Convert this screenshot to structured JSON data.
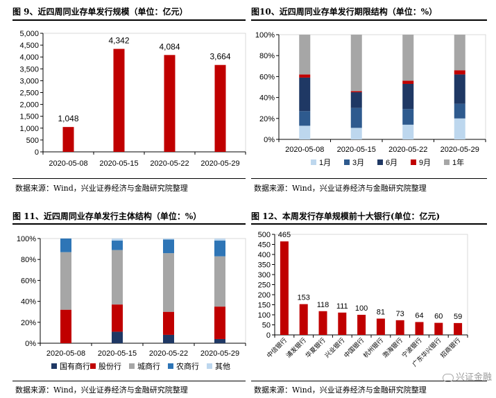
{
  "panels": {
    "p1": {
      "title": "图 9、近四周同业存单发行规模（单位：亿元）",
      "source": "数据来源：Wind，兴业证券经济与金融研究院整理"
    },
    "p2": {
      "title": "图10、近四周同业存单发行期限结构（单位：%）",
      "source": "数据来源：Wind，兴业证券经济与金融研究院整理"
    },
    "p3": {
      "title": "图 11、近四周同业存单发行主体结构（单位：%）",
      "source": "数据来源：Wind，兴业证券经济与金融研究院整理"
    },
    "p4": {
      "title": "图 12、本周发行存单规模前十大银行(单位：亿元)",
      "source": "数据来源：Wind，兴业证券经济与金融研究院整理"
    }
  },
  "watermark": "兴证金融",
  "chart_data": [
    {
      "type": "bar",
      "categories": [
        "2020-05-08",
        "2020-05-15",
        "2020-05-22",
        "2020-05-29"
      ],
      "values": [
        1048,
        4342,
        4084,
        3664
      ],
      "value_labels": [
        "1,048",
        "4,342",
        "4,084",
        "3,664"
      ],
      "ylim": [
        0,
        5000
      ],
      "yticks": [
        "0",
        "500",
        "1,000",
        "1,500",
        "2,000",
        "2,500",
        "3,000",
        "3,500",
        "4,000",
        "4,500",
        "5,000"
      ],
      "color": "#c00000",
      "grid": false
    },
    {
      "type": "bar",
      "stacked": true,
      "categories": [
        "2020-05-08",
        "2020-05-15",
        "2020-05-22",
        "2020-05-29"
      ],
      "series": [
        {
          "name": "1月",
          "color": "#bdd7ee",
          "values": [
            13,
            11,
            14,
            20
          ]
        },
        {
          "name": "3月",
          "color": "#2e5a8e",
          "values": [
            14,
            19,
            15,
            14
          ]
        },
        {
          "name": "6月",
          "color": "#1f3864",
          "values": [
            32,
            15,
            24,
            28
          ]
        },
        {
          "name": "9月",
          "color": "#c00000",
          "values": [
            3,
            1,
            3,
            4
          ]
        },
        {
          "name": "1年",
          "color": "#a6a6a6",
          "values": [
            38,
            54,
            44,
            34
          ]
        }
      ],
      "ylim": [
        0,
        100
      ],
      "yticks": [
        "0%",
        "20%",
        "40%",
        "60%",
        "80%",
        "100%"
      ],
      "legend": "bottom"
    },
    {
      "type": "bar",
      "stacked": true,
      "categories": [
        "2020-05-08",
        "2020-05-15",
        "2020-05-22",
        "2020-05-29"
      ],
      "series": [
        {
          "name": "国有商行",
          "color": "#1f3864",
          "values": [
            0,
            11,
            8,
            4
          ]
        },
        {
          "name": "股份行",
          "color": "#c00000",
          "values": [
            32,
            26,
            22,
            31
          ]
        },
        {
          "name": "城商行",
          "color": "#a6a6a6",
          "values": [
            55,
            52,
            56,
            48
          ]
        },
        {
          "name": "农商行",
          "color": "#2e75b6",
          "values": [
            13,
            9,
            13,
            15
          ]
        },
        {
          "name": "其他",
          "color": "#bdd7ee",
          "values": [
            0,
            2,
            1,
            2
          ]
        }
      ],
      "ylim": [
        0,
        100
      ],
      "yticks": [
        "0%",
        "20%",
        "40%",
        "60%",
        "80%",
        "100%"
      ],
      "legend": "bottom"
    },
    {
      "type": "bar",
      "categories": [
        "中信银行",
        "浦发银行",
        "华夏银行",
        "兴业银行",
        "中国银行",
        "杭州银行",
        "渤海银行",
        "宁波银行",
        "广东华兴银行",
        "招商银行"
      ],
      "values": [
        465,
        153,
        118,
        111,
        100,
        81,
        73,
        64,
        60,
        59
      ],
      "ylim": [
        0,
        500
      ],
      "yticks": [
        "0",
        "50",
        "100",
        "150",
        "200",
        "250",
        "300",
        "350",
        "400",
        "450",
        "500"
      ],
      "color": "#c00000",
      "grid": false
    }
  ]
}
